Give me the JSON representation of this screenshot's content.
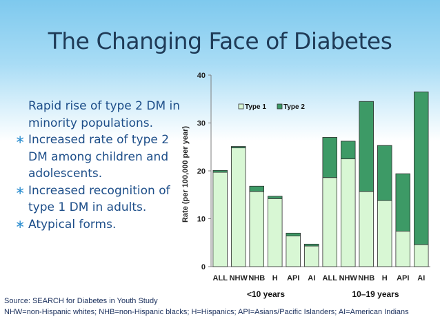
{
  "slide": {
    "title": "The Changing Face of Diabetes",
    "bullets": [
      "Rapid rise of type 2 DM in minority populations.",
      "Increased rate of type 2 DM among children and adolescents.",
      "Increased recognition of type 1 DM in adults.",
      "Atypical forms."
    ],
    "source": "Source: SEARCH for Diabetes in Youth Study",
    "abbreviations": "NHW=non-Hispanic whites; NHB=non-Hispanic blacks; H=Hispanics; API=Asians/Pacific Islanders; AI=American Indians"
  },
  "colors": {
    "type1": "#d8f7d4",
    "type2": "#3d9a66",
    "title": "#1f3b57",
    "bullet_text": "#1d4e89"
  },
  "chart_data": {
    "type": "bar",
    "stacked": true,
    "ylabel": "Rate (per 100,000 per year)",
    "ylim": [
      0,
      40
    ],
    "yticks": [
      0,
      10,
      20,
      30,
      40
    ],
    "categories": [
      "ALL",
      "NHW",
      "NHB",
      "H",
      "API",
      "AI",
      "ALL",
      "NHW",
      "NHB",
      "H",
      "API",
      "AI"
    ],
    "groups": [
      {
        "label": "<10 years",
        "count": 6
      },
      {
        "label": "10–19 years",
        "count": 6
      }
    ],
    "series": [
      {
        "name": "Type 1",
        "values": [
          19.7,
          24.8,
          15.7,
          14.2,
          6.4,
          4.3,
          18.6,
          22.5,
          15.7,
          13.8,
          7.4,
          4.6
        ]
      },
      {
        "name": "Type 2",
        "values": [
          0.4,
          0.3,
          1.1,
          0.5,
          0.6,
          0.4,
          8.4,
          3.7,
          18.8,
          11.5,
          12.0,
          31.9
        ]
      }
    ],
    "legend_position": "top"
  }
}
